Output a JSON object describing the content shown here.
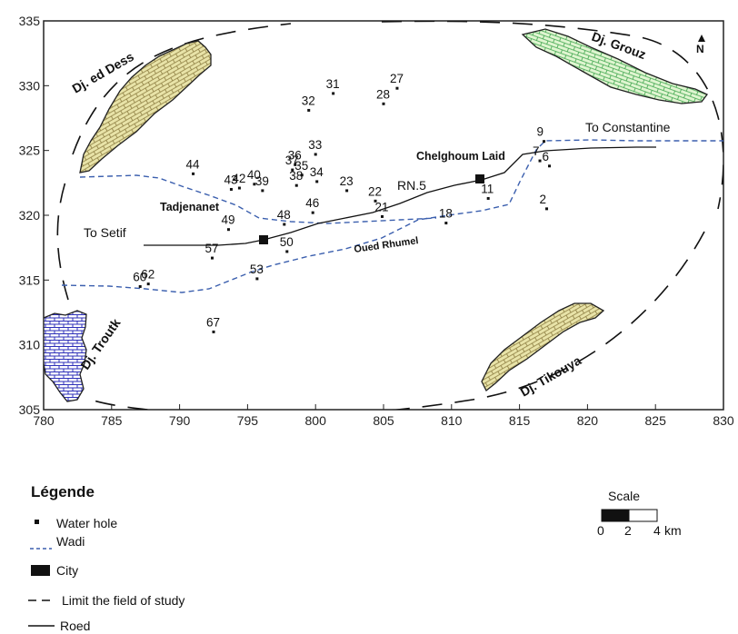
{
  "map": {
    "x_ticks": [
      "780",
      "785",
      "790",
      "795",
      "800",
      "805",
      "810",
      "815",
      "820",
      "825",
      "830"
    ],
    "y_ticks": [
      "305",
      "310",
      "315",
      "320",
      "325",
      "330",
      "335"
    ],
    "north": "N",
    "mountains": {
      "ed_dess": "Dj. ed Dess",
      "grouz": "Dj. Grouz",
      "troutk": "Dj. Troutk",
      "tikouya": "Dj. Tikouya"
    },
    "places": {
      "to_constantine": "To Constantine",
      "chelghoum": "Chelghoum Laid",
      "rn5": "RN.5",
      "tadjenanet": "Tadjenanet",
      "to_setif": "To Setif",
      "oued": "Oued Rhumel"
    },
    "wells": [
      {
        "id": "27",
        "x": 806.0,
        "y": 329.8
      },
      {
        "id": "31",
        "x": 801.3,
        "y": 329.4
      },
      {
        "id": "28",
        "x": 805.0,
        "y": 328.6
      },
      {
        "id": "32",
        "x": 799.5,
        "y": 328.1
      },
      {
        "id": "9",
        "x": 816.8,
        "y": 325.7
      },
      {
        "id": "33",
        "x": 800.0,
        "y": 324.7
      },
      {
        "id": "7",
        "x": 816.5,
        "y": 324.2
      },
      {
        "id": "6",
        "x": 817.2,
        "y": 323.8
      },
      {
        "id": "44",
        "x": 791.0,
        "y": 323.2
      },
      {
        "id": "36",
        "x": 798.5,
        "y": 323.9
      },
      {
        "id": "37",
        "x": 798.3,
        "y": 323.5
      },
      {
        "id": "35",
        "x": 799.0,
        "y": 323.1
      },
      {
        "id": "34",
        "x": 800.1,
        "y": 322.6
      },
      {
        "id": "40",
        "x": 795.5,
        "y": 322.4
      },
      {
        "id": "43",
        "x": 793.8,
        "y": 322.0
      },
      {
        "id": "42",
        "x": 794.4,
        "y": 322.1
      },
      {
        "id": "39",
        "x": 796.1,
        "y": 321.9
      },
      {
        "id": "38",
        "x": 798.6,
        "y": 322.3
      },
      {
        "id": "23",
        "x": 802.3,
        "y": 321.9
      },
      {
        "id": "22",
        "x": 804.4,
        "y": 321.1
      },
      {
        "id": "11",
        "x": 812.7,
        "y": 321.3
      },
      {
        "id": "2",
        "x": 817.0,
        "y": 320.5
      },
      {
        "id": "21",
        "x": 804.9,
        "y": 319.9
      },
      {
        "id": "46",
        "x": 799.8,
        "y": 320.2
      },
      {
        "id": "48",
        "x": 797.7,
        "y": 319.3
      },
      {
        "id": "49",
        "x": 793.6,
        "y": 318.9
      },
      {
        "id": "18",
        "x": 809.6,
        "y": 319.4
      },
      {
        "id": "50",
        "x": 797.9,
        "y": 317.2
      },
      {
        "id": "57",
        "x": 792.4,
        "y": 316.7
      },
      {
        "id": "53",
        "x": 795.7,
        "y": 315.1
      },
      {
        "id": "60",
        "x": 787.1,
        "y": 314.5
      },
      {
        "id": "62",
        "x": 787.7,
        "y": 314.7
      },
      {
        "id": "67",
        "x": 792.5,
        "y": 311.0
      }
    ]
  },
  "legend": {
    "title": "Légende",
    "water_hole": "Water hole",
    "wadi": "Wadi",
    "city": "City",
    "limit": "Limit the field of study",
    "road": "Roed"
  },
  "scale": {
    "title": "Scale",
    "t0": "0",
    "t1": "2",
    "t2": "4",
    "unit": "km"
  },
  "colors": {
    "wadi": "#3b5fae",
    "grouz_fill": "#dff5d0",
    "grouz_pattern": "#3aa34a",
    "dess_fill": "#e8e3a8",
    "dess_pattern": "#8a7a3e",
    "troutk_fill": "#ffffff",
    "troutk_pattern": "#2d2fb8"
  }
}
